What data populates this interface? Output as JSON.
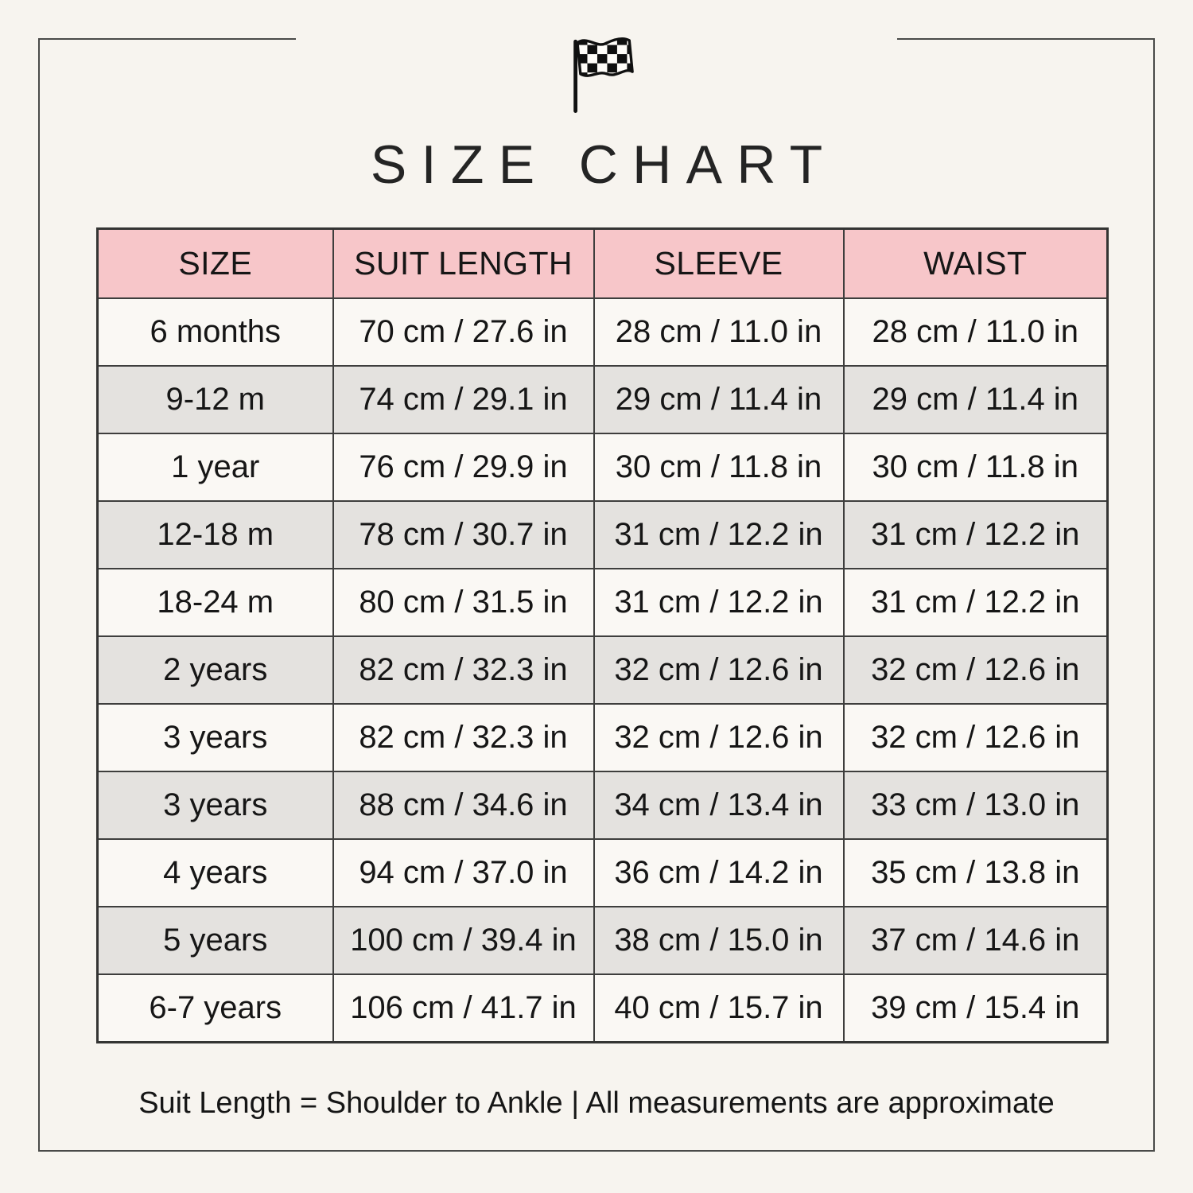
{
  "page": {
    "background_color": "#f7f4ef",
    "frame_border_color": "#4a4a49",
    "text_color": "#161616"
  },
  "header": {
    "icon": "checkered-flag-icon",
    "title": "SIZE CHART"
  },
  "chart_data": {
    "type": "table",
    "title": "SIZE CHART",
    "columns": [
      "SIZE",
      "SUIT LENGTH",
      "SLEEVE",
      "WAIST"
    ],
    "rows": [
      [
        "6 months",
        "70 cm / 27.6 in",
        "28 cm / 11.0 in",
        "28 cm / 11.0 in"
      ],
      [
        "9-12 m",
        "74 cm / 29.1 in",
        "29 cm / 11.4 in",
        "29 cm / 11.4 in"
      ],
      [
        "1 year",
        "76 cm / 29.9 in",
        "30 cm / 11.8 in",
        "30 cm / 11.8 in"
      ],
      [
        "12-18 m",
        "78 cm / 30.7 in",
        "31 cm / 12.2 in",
        "31 cm / 12.2 in"
      ],
      [
        "18-24 m",
        "80 cm / 31.5 in",
        "31 cm / 12.2 in",
        "31 cm / 12.2 in"
      ],
      [
        "2 years",
        "82 cm / 32.3 in",
        "32 cm / 12.6 in",
        "32 cm / 12.6 in"
      ],
      [
        "3 years",
        "82 cm / 32.3 in",
        "32 cm / 12.6 in",
        "32 cm / 12.6 in"
      ],
      [
        "3 years",
        "88 cm / 34.6 in",
        "34 cm / 13.4 in",
        "33 cm / 13.0 in"
      ],
      [
        "4 years",
        "94 cm / 37.0 in",
        "36 cm / 14.2 in",
        "35 cm / 13.8 in"
      ],
      [
        "5 years",
        "100 cm / 39.4 in",
        "38 cm / 15.0 in",
        "37 cm / 14.6 in"
      ],
      [
        "6-7 years",
        "106 cm / 41.7 in",
        "40 cm / 15.7 in",
        "39 cm / 15.4 in"
      ]
    ],
    "layout": {
      "header_bg": "#f7c6c9",
      "row_bg": "#faf8f4",
      "row_alt_bg": "#e4e2df",
      "border_color": "#3e3e3d"
    }
  },
  "footer": {
    "note": "Suit Length = Shoulder to Ankle | All measurements are approximate"
  }
}
